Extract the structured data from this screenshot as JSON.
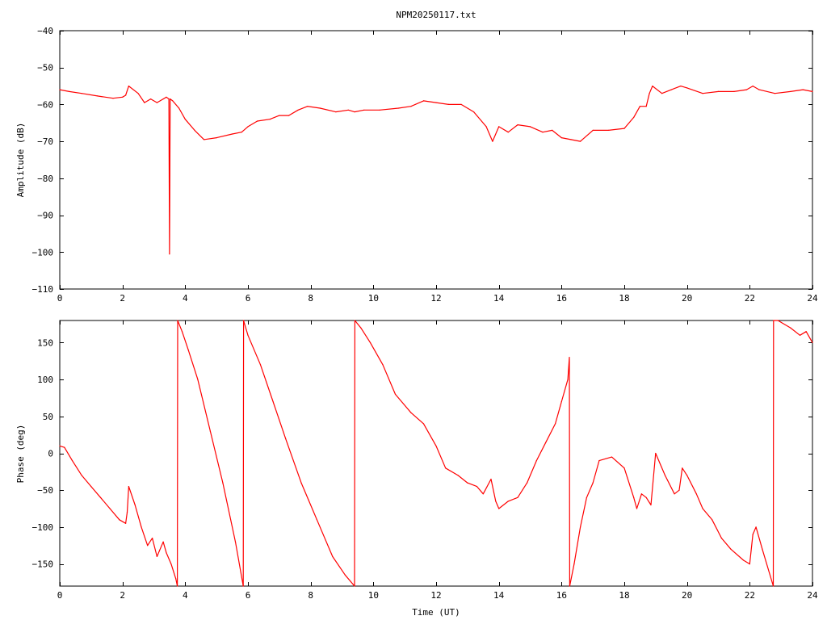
{
  "chart_data": [
    {
      "type": "line",
      "title": "NPM20250117.txt",
      "xlabel": "",
      "ylabel": "Amplitude (dB)",
      "xlim": [
        0,
        24
      ],
      "ylim": [
        -110,
        -40
      ],
      "xticks": [
        0,
        2,
        4,
        6,
        8,
        10,
        12,
        14,
        16,
        18,
        20,
        22,
        24
      ],
      "yticks": [
        -110,
        -100,
        -90,
        -80,
        -70,
        -60,
        -50,
        -40
      ],
      "grid": false,
      "color": "#ff0000",
      "series": [
        {
          "x": [
            0,
            0.3,
            0.7,
            1.2,
            1.7,
            2.0,
            2.1,
            2.2,
            2.5,
            2.7,
            2.9,
            3.1,
            3.3,
            3.4,
            3.48,
            3.5,
            3.52,
            3.6,
            3.8,
            4.0,
            4.3,
            4.6,
            5.0,
            5.5,
            5.8,
            6.0,
            6.3,
            6.7,
            7.0,
            7.3,
            7.6,
            7.9,
            8.3,
            8.8,
            9.2,
            9.4,
            9.7,
            10.2,
            10.8,
            11.2,
            11.6,
            12.0,
            12.4,
            12.8,
            13.2,
            13.6,
            13.8,
            14.0,
            14.3,
            14.6,
            15.0,
            15.4,
            15.7,
            16.0,
            16.3,
            16.6,
            17.0,
            17.5,
            18.0,
            18.3,
            18.5,
            18.7,
            18.8,
            18.9,
            19.2,
            19.5,
            19.8,
            20.0,
            20.5,
            21.0,
            21.5,
            21.9,
            22.1,
            22.3,
            22.8,
            23.3,
            23.7,
            24.0
          ],
          "y": [
            -56,
            -56.5,
            -57,
            -57.7,
            -58.3,
            -58,
            -57.5,
            -55,
            -57,
            -59.5,
            -58.5,
            -59.5,
            -58.5,
            -58,
            -58.5,
            -100.5,
            -58.5,
            -59,
            -61,
            -64,
            -67,
            -69.5,
            -69,
            -68,
            -67.5,
            -66,
            -64.5,
            -64,
            -63,
            -63,
            -61.5,
            -60.5,
            -61,
            -62,
            -61.5,
            -62,
            -61.5,
            -61.5,
            -61,
            -60.5,
            -59,
            -59.5,
            -60,
            -60,
            -62,
            -66,
            -70,
            -66,
            -67.5,
            -65.5,
            -66,
            -67.5,
            -67,
            -69,
            -69.5,
            -70,
            -67,
            -67,
            -66.5,
            -63.5,
            -60.5,
            -60.5,
            -57,
            -55,
            -57,
            -56,
            -55,
            -55.5,
            -57,
            -56.5,
            -56.5,
            -56,
            -55,
            -56,
            -57,
            -56.5,
            -56,
            -56.5
          ]
        }
      ]
    },
    {
      "type": "line",
      "title": "",
      "xlabel": "Time (UT)",
      "ylabel": "Phase (deg)",
      "xlim": [
        0,
        24
      ],
      "ylim": [
        -180,
        180
      ],
      "xticks": [
        0,
        2,
        4,
        6,
        8,
        10,
        12,
        14,
        16,
        18,
        20,
        22,
        24
      ],
      "yticks": [
        -150,
        -100,
        -50,
        0,
        50,
        100,
        150
      ],
      "grid": false,
      "color": "#ff0000",
      "series": [
        {
          "x": [
            0,
            0.15,
            0.4,
            0.7,
            1.0,
            1.3,
            1.6,
            1.9,
            2.1,
            2.15,
            2.2,
            2.4,
            2.6,
            2.8,
            2.95,
            3.1,
            3.3,
            3.4,
            3.55,
            3.7,
            3.75,
            3.76,
            3.9,
            4.1,
            4.4,
            4.8,
            5.2,
            5.6,
            5.85,
            5.86,
            6.0,
            6.4,
            6.8,
            7.2,
            7.7,
            8.2,
            8.7,
            9.1,
            9.4,
            9.41,
            9.6,
            9.9,
            10.3,
            10.7,
            11.2,
            11.6,
            12.0,
            12.3,
            12.7,
            13.0,
            13.3,
            13.5,
            13.75,
            13.9,
            14.0,
            14.3,
            14.6,
            14.9,
            15.2,
            15.5,
            15.8,
            16.0,
            16.2,
            16.25,
            16.26,
            16.4,
            16.6,
            16.8,
            17.0,
            17.2,
            17.6,
            18.0,
            18.3,
            18.4,
            18.55,
            18.7,
            18.85,
            19.0,
            19.3,
            19.6,
            19.75,
            19.85,
            20.0,
            20.3,
            20.5,
            20.8,
            21.1,
            21.4,
            21.8,
            22.0,
            22.1,
            22.2,
            22.4,
            22.75,
            22.76,
            22.9,
            23.3,
            23.6,
            23.8,
            24.0
          ],
          "y": [
            10,
            8,
            -10,
            -30,
            -45,
            -60,
            -75,
            -90,
            -95,
            -80,
            -45,
            -70,
            -100,
            -125,
            -115,
            -140,
            -120,
            -135,
            -150,
            -170,
            -180,
            180,
            165,
            140,
            100,
            30,
            -40,
            -120,
            -180,
            180,
            160,
            120,
            70,
            20,
            -40,
            -90,
            -140,
            -165,
            -180,
            180,
            170,
            150,
            120,
            80,
            55,
            40,
            10,
            -20,
            -30,
            -40,
            -45,
            -55,
            -35,
            -65,
            -75,
            -65,
            -60,
            -40,
            -10,
            15,
            40,
            70,
            100,
            130,
            -180,
            -150,
            -100,
            -60,
            -40,
            -10,
            -5,
            -20,
            -60,
            -75,
            -55,
            -60,
            -70,
            0,
            -30,
            -55,
            -50,
            -20,
            -30,
            -55,
            -75,
            -90,
            -115,
            -130,
            -145,
            -150,
            -110,
            -100,
            -130,
            -180,
            180,
            180,
            170,
            160,
            165,
            150
          ]
        }
      ]
    }
  ]
}
